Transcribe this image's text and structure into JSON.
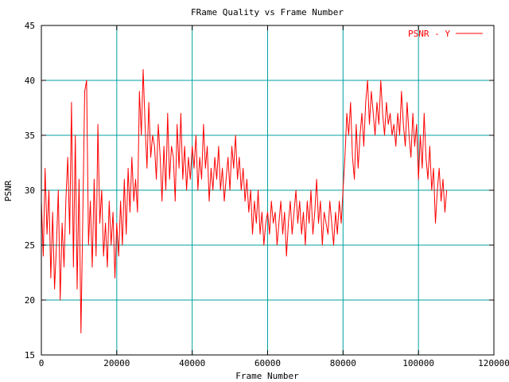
{
  "chart_data": {
    "type": "line",
    "title": "FRame Quality vs Frame Number",
    "xlabel": "Frame Number",
    "ylabel": "PSNR",
    "xlim": [
      0,
      120000
    ],
    "ylim": [
      15,
      45
    ],
    "xticks": [
      0,
      20000,
      40000,
      60000,
      80000,
      100000,
      120000
    ],
    "yticks": [
      15,
      20,
      25,
      30,
      35,
      40,
      45
    ],
    "grid": true,
    "grid_color": "#00a0a0",
    "legend_position": "top-right",
    "series": [
      {
        "name": "PSNR - Y",
        "color": "#ff0000",
        "x": [
          0,
          500,
          1000,
          1500,
          2000,
          2500,
          3000,
          3500,
          4000,
          4500,
          5000,
          5500,
          6000,
          6500,
          7000,
          7500,
          8000,
          8500,
          9000,
          9500,
          10000,
          10500,
          11000,
          11500,
          12000,
          12500,
          13000,
          13500,
          14000,
          14500,
          15000,
          15500,
          16000,
          16500,
          17000,
          17500,
          18000,
          18500,
          19000,
          19500,
          20000,
          20500,
          21000,
          21500,
          22000,
          22500,
          23000,
          23500,
          24000,
          24500,
          25000,
          25500,
          26000,
          26500,
          27000,
          27500,
          28000,
          28500,
          29000,
          29500,
          30000,
          30500,
          31000,
          31500,
          32000,
          32500,
          33000,
          33500,
          34000,
          34500,
          35000,
          35500,
          36000,
          36500,
          37000,
          37500,
          38000,
          38500,
          39000,
          39500,
          40000,
          40500,
          41000,
          41500,
          42000,
          42500,
          43000,
          43500,
          44000,
          44500,
          45000,
          45500,
          46000,
          46500,
          47000,
          47500,
          48000,
          48500,
          49000,
          49500,
          50000,
          50500,
          51000,
          51500,
          52000,
          52500,
          53000,
          53500,
          54000,
          54500,
          55000,
          55500,
          56000,
          56500,
          57000,
          57500,
          58000,
          58500,
          59000,
          59500,
          60000,
          60500,
          61000,
          61500,
          62000,
          62500,
          63000,
          63500,
          64000,
          64500,
          65000,
          65500,
          66000,
          66500,
          67000,
          67500,
          68000,
          68500,
          69000,
          69500,
          70000,
          70500,
          71000,
          71500,
          72000,
          72500,
          73000,
          73500,
          74000,
          74500,
          75000,
          75500,
          76000,
          76500,
          77000,
          77500,
          78000,
          78500,
          79000,
          79500,
          80000,
          80500,
          81000,
          81500,
          82000,
          82500,
          83000,
          83500,
          84000,
          84500,
          85000,
          85500,
          86000,
          86500,
          87000,
          87500,
          88000,
          88500,
          89000,
          89500,
          90000,
          90500,
          91000,
          91500,
          92000,
          92500,
          93000,
          93500,
          94000,
          94500,
          95000,
          95500,
          96000,
          96500,
          97000,
          97500,
          98000,
          98500,
          99000,
          99500,
          100000,
          100500,
          101000,
          101500,
          102000,
          102500,
          103000,
          103500,
          104000,
          104500,
          105000,
          105500,
          106000,
          106500,
          107000,
          107500
        ],
        "y": [
          29,
          24,
          32,
          26,
          30,
          22,
          28,
          21,
          25,
          30,
          20,
          27,
          23,
          29,
          33,
          26,
          38,
          23,
          35,
          21,
          31,
          17,
          28,
          39,
          40,
          25,
          29,
          23,
          31,
          24,
          36,
          27,
          30,
          24,
          27,
          23,
          29,
          25,
          28,
          22,
          27,
          24,
          29,
          25,
          31,
          26,
          32,
          28,
          33,
          29,
          31,
          28,
          39,
          35,
          41,
          36,
          32,
          38,
          33,
          35,
          34,
          31,
          36,
          33,
          29,
          34,
          30,
          37,
          31,
          34,
          33,
          29,
          36,
          32,
          37,
          31,
          34,
          30,
          33,
          31,
          34,
          32,
          35,
          30,
          33,
          31,
          36,
          32,
          34,
          29,
          32,
          30,
          33,
          31,
          34,
          30,
          32,
          29,
          31,
          33,
          30,
          34,
          32,
          35,
          31,
          33,
          30,
          32,
          29,
          31,
          28,
          30,
          26,
          29,
          27,
          30,
          26,
          28,
          25,
          27,
          28,
          26,
          29,
          27,
          28,
          25,
          27,
          29,
          26,
          28,
          24,
          27,
          29,
          26,
          28,
          30,
          27,
          29,
          26,
          28,
          25,
          29,
          27,
          30,
          26,
          28,
          31,
          27,
          29,
          25,
          28,
          27,
          26,
          29,
          27,
          25,
          28,
          26,
          29,
          27,
          30,
          33,
          37,
          35,
          38,
          33,
          31,
          36,
          32,
          35,
          37,
          34,
          38,
          40,
          36,
          39,
          37,
          35,
          38,
          36,
          40,
          37,
          35,
          38,
          36,
          37,
          35,
          36,
          34,
          37,
          35,
          39,
          36,
          34,
          38,
          35,
          33,
          37,
          34,
          36,
          31,
          35,
          32,
          37,
          33,
          31,
          34,
          30,
          32,
          27,
          30,
          32,
          29,
          31,
          28,
          30
        ]
      }
    ]
  }
}
